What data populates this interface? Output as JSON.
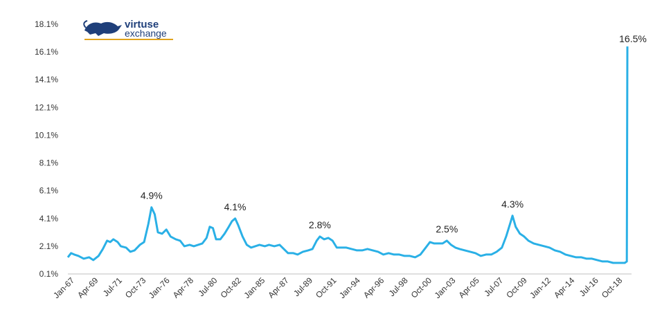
{
  "chart_data": {
    "type": "line",
    "title": "",
    "xlabel": "",
    "ylabel": "",
    "ylim": [
      0.1,
      18.1
    ],
    "yticks": [
      "0.1%",
      "2.1%",
      "4.1%",
      "6.1%",
      "8.1%",
      "10.1%",
      "12.1%",
      "14.1%",
      "16.1%",
      "18.1%"
    ],
    "xticks": [
      "Jan-67",
      "Apr-69",
      "Jul-71",
      "Oct-73",
      "Jan-76",
      "Apr-78",
      "Jul-80",
      "Oct-82",
      "Jan-85",
      "Apr-87",
      "Jul-89",
      "Oct-91",
      "Jan-94",
      "Apr-96",
      "Jul-98",
      "Oct-00",
      "Jan-03",
      "Apr-05",
      "Jul-07",
      "Oct-09",
      "Jan-12",
      "Apr-14",
      "Jul-16",
      "Oct-18"
    ],
    "grid": false,
    "legend": "none",
    "color": "#2ab0e6",
    "series": [
      {
        "points": [
          [
            1967.0,
            1.3
          ],
          [
            1967.3,
            1.6
          ],
          [
            1967.6,
            1.5
          ],
          [
            1968.0,
            1.4
          ],
          [
            1968.5,
            1.2
          ],
          [
            1969.0,
            1.3
          ],
          [
            1969.4,
            1.1
          ],
          [
            1969.9,
            1.4
          ],
          [
            1970.3,
            1.9
          ],
          [
            1970.7,
            2.5
          ],
          [
            1971.0,
            2.4
          ],
          [
            1971.3,
            2.6
          ],
          [
            1971.7,
            2.4
          ],
          [
            1972.0,
            2.1
          ],
          [
            1972.5,
            2.0
          ],
          [
            1972.9,
            1.7
          ],
          [
            1973.3,
            1.8
          ],
          [
            1973.8,
            2.2
          ],
          [
            1974.2,
            2.4
          ],
          [
            1974.6,
            3.7
          ],
          [
            1974.9,
            4.9
          ],
          [
            1975.2,
            4.4
          ],
          [
            1975.5,
            3.1
          ],
          [
            1975.9,
            3.0
          ],
          [
            1976.3,
            3.3
          ],
          [
            1976.7,
            2.8
          ],
          [
            1977.2,
            2.6
          ],
          [
            1977.6,
            2.5
          ],
          [
            1978.0,
            2.1
          ],
          [
            1978.5,
            2.2
          ],
          [
            1978.9,
            2.1
          ],
          [
            1979.3,
            2.2
          ],
          [
            1979.7,
            2.3
          ],
          [
            1980.1,
            2.7
          ],
          [
            1980.4,
            3.5
          ],
          [
            1980.7,
            3.4
          ],
          [
            1981.0,
            2.6
          ],
          [
            1981.4,
            2.6
          ],
          [
            1981.8,
            3.0
          ],
          [
            1982.2,
            3.5
          ],
          [
            1982.5,
            3.9
          ],
          [
            1982.8,
            4.1
          ],
          [
            1983.1,
            3.6
          ],
          [
            1983.5,
            2.8
          ],
          [
            1983.9,
            2.2
          ],
          [
            1984.3,
            2.0
          ],
          [
            1984.7,
            2.1
          ],
          [
            1985.1,
            2.2
          ],
          [
            1985.6,
            2.1
          ],
          [
            1986.0,
            2.2
          ],
          [
            1986.5,
            2.1
          ],
          [
            1987.0,
            2.2
          ],
          [
            1987.4,
            1.9
          ],
          [
            1987.8,
            1.6
          ],
          [
            1988.3,
            1.6
          ],
          [
            1988.7,
            1.5
          ],
          [
            1989.2,
            1.7
          ],
          [
            1989.7,
            1.8
          ],
          [
            1990.1,
            1.9
          ],
          [
            1990.5,
            2.5
          ],
          [
            1990.8,
            2.8
          ],
          [
            1991.2,
            2.6
          ],
          [
            1991.6,
            2.7
          ],
          [
            1992.0,
            2.5
          ],
          [
            1992.4,
            2.0
          ],
          [
            1992.8,
            2.0
          ],
          [
            1993.3,
            2.0
          ],
          [
            1993.8,
            1.9
          ],
          [
            1994.3,
            1.8
          ],
          [
            1994.8,
            1.8
          ],
          [
            1995.3,
            1.9
          ],
          [
            1995.8,
            1.8
          ],
          [
            1996.3,
            1.7
          ],
          [
            1996.8,
            1.5
          ],
          [
            1997.3,
            1.6
          ],
          [
            1997.8,
            1.5
          ],
          [
            1998.3,
            1.5
          ],
          [
            1998.8,
            1.4
          ],
          [
            1999.3,
            1.4
          ],
          [
            1999.8,
            1.3
          ],
          [
            2000.3,
            1.5
          ],
          [
            2000.8,
            2.0
          ],
          [
            2001.2,
            2.4
          ],
          [
            2001.6,
            2.3
          ],
          [
            2002.0,
            2.3
          ],
          [
            2002.4,
            2.3
          ],
          [
            2002.8,
            2.5
          ],
          [
            2003.2,
            2.2
          ],
          [
            2003.6,
            2.0
          ],
          [
            2004.0,
            1.9
          ],
          [
            2004.5,
            1.8
          ],
          [
            2005.0,
            1.7
          ],
          [
            2005.5,
            1.6
          ],
          [
            2006.0,
            1.4
          ],
          [
            2006.5,
            1.5
          ],
          [
            2007.0,
            1.5
          ],
          [
            2007.5,
            1.7
          ],
          [
            2008.0,
            2.0
          ],
          [
            2008.4,
            2.8
          ],
          [
            2008.8,
            3.8
          ],
          [
            2009.0,
            4.3
          ],
          [
            2009.3,
            3.5
          ],
          [
            2009.7,
            3.0
          ],
          [
            2010.1,
            2.8
          ],
          [
            2010.5,
            2.5
          ],
          [
            2011.0,
            2.3
          ],
          [
            2011.5,
            2.2
          ],
          [
            2012.0,
            2.1
          ],
          [
            2012.5,
            2.0
          ],
          [
            2013.0,
            1.8
          ],
          [
            2013.5,
            1.7
          ],
          [
            2014.0,
            1.5
          ],
          [
            2014.5,
            1.4
          ],
          [
            2015.0,
            1.3
          ],
          [
            2015.5,
            1.3
          ],
          [
            2016.0,
            1.2
          ],
          [
            2016.5,
            1.2
          ],
          [
            2017.0,
            1.1
          ],
          [
            2017.5,
            1.0
          ],
          [
            2018.0,
            1.0
          ],
          [
            2018.5,
            0.9
          ],
          [
            2019.0,
            0.9
          ],
          [
            2019.6,
            0.9
          ],
          [
            2019.8,
            1.0
          ],
          [
            2019.85,
            16.5
          ]
        ]
      }
    ],
    "annotations": [
      {
        "x": 1974.9,
        "y": 4.9,
        "text": "4.9%"
      },
      {
        "x": 1982.8,
        "y": 4.1,
        "text": "4.1%"
      },
      {
        "x": 1990.8,
        "y": 2.8,
        "text": "2.8%"
      },
      {
        "x": 2002.8,
        "y": 2.5,
        "text": "2.5%"
      },
      {
        "x": 2009.0,
        "y": 4.3,
        "text": "4.3%"
      },
      {
        "x": 2019.85,
        "y": 16.5,
        "text": "16.5%"
      }
    ]
  },
  "logo": {
    "line1": "virtuse",
    "line2": "exchange"
  }
}
